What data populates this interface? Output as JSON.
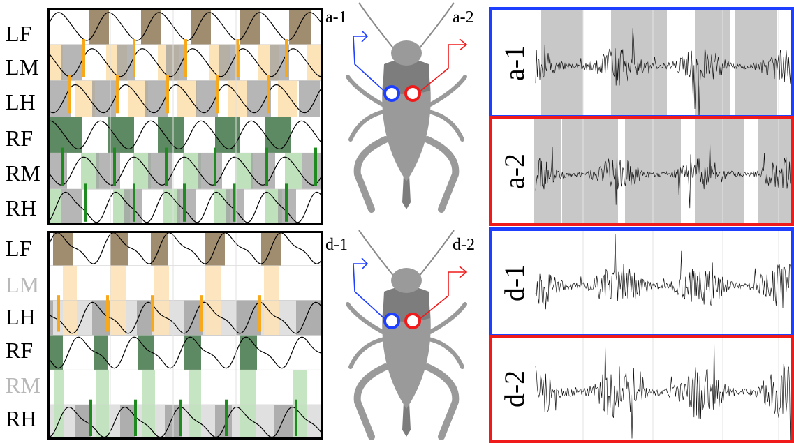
{
  "top_panel": {
    "legs": [
      {
        "label": "LF",
        "dim": false
      },
      {
        "label": "LM",
        "dim": false
      },
      {
        "label": "LH",
        "dim": false
      },
      {
        "label": "RF",
        "dim": false
      },
      {
        "label": "RM",
        "dim": false
      },
      {
        "label": "RH",
        "dim": false
      }
    ]
  },
  "bottom_panel": {
    "legs": [
      {
        "label": "LF",
        "dim": false
      },
      {
        "label": "LM",
        "dim": true
      },
      {
        "label": "LH",
        "dim": false
      },
      {
        "label": "RF",
        "dim": false
      },
      {
        "label": "RM",
        "dim": true
      },
      {
        "label": "RH",
        "dim": false
      }
    ]
  },
  "cricket_top": {
    "left_label": "a-1",
    "right_label": "a-2"
  },
  "cricket_bottom": {
    "left_label": "d-1",
    "right_label": "d-2"
  },
  "recordings": [
    {
      "label": "a-1",
      "border": "#1f3fff"
    },
    {
      "label": "a-2",
      "border": "#f01a1a"
    },
    {
      "label": "d-1",
      "border": "#1f3fff"
    },
    {
      "label": "d-2",
      "border": "#f01a1a"
    }
  ],
  "colors": {
    "left_front": "#a08c6e",
    "left_front_light": "#fde3b8",
    "left_marker": "#f7a81b",
    "right_front": "#5e8a63",
    "right_light": "#bfe2bd",
    "right_marker": "#1f8a1f",
    "stance_gray": "#9e9e9e",
    "electrode_left": "#1f3fff",
    "electrode_right": "#f01a1a"
  }
}
